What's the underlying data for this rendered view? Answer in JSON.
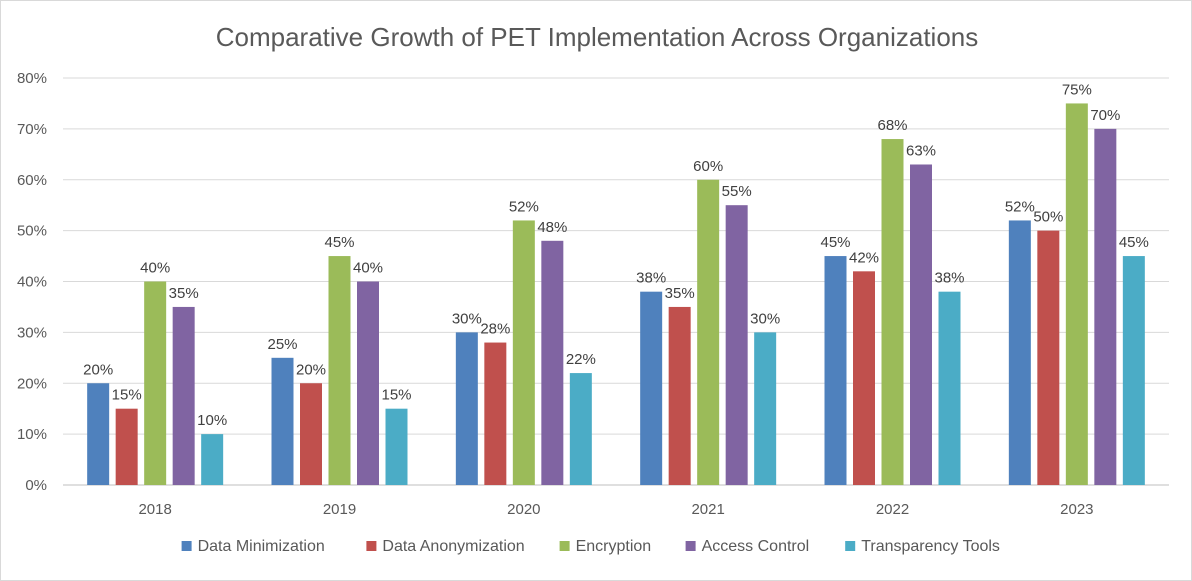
{
  "chart_data": {
    "type": "bar",
    "title": "Comparative Growth of PET Implementation Across Organizations",
    "xlabel": "",
    "ylabel": "",
    "categories": [
      "2018",
      "2019",
      "2020",
      "2021",
      "2022",
      "2023"
    ],
    "series": [
      {
        "name": "Data Minimization",
        "color": "#4f81bd",
        "values": [
          20,
          25,
          30,
          38,
          45,
          52
        ]
      },
      {
        "name": "Data Anonymization",
        "color": "#c0504d",
        "values": [
          15,
          20,
          28,
          35,
          42,
          50
        ]
      },
      {
        "name": "Encryption",
        "color": "#9bbb59",
        "values": [
          40,
          45,
          52,
          60,
          68,
          75
        ]
      },
      {
        "name": "Access Control",
        "color": "#8064a2",
        "values": [
          35,
          40,
          48,
          55,
          63,
          70
        ]
      },
      {
        "name": "Transparency Tools",
        "color": "#4bacc6",
        "values": [
          10,
          15,
          22,
          30,
          38,
          45
        ]
      }
    ],
    "ylim": [
      0,
      80
    ],
    "yticks": [
      "0%",
      "10%",
      "20%",
      "30%",
      "40%",
      "50%",
      "60%",
      "70%",
      "80%"
    ],
    "value_suffix": "%",
    "grid": true,
    "legend_position": "bottom"
  }
}
